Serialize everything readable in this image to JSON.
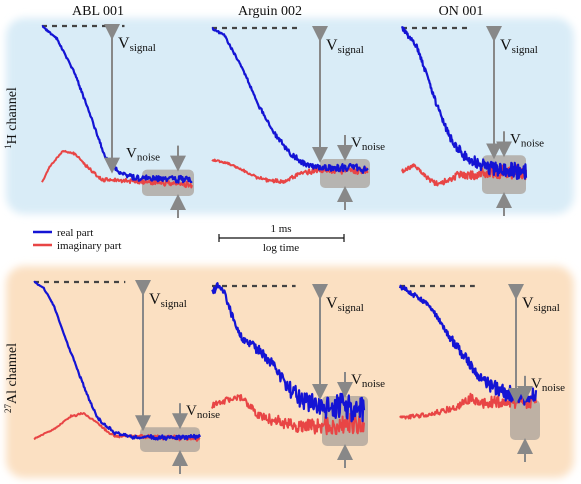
{
  "columns": [
    "ABL 001",
    "Arguin 002",
    "ON 001"
  ],
  "rows": [
    {
      "label_sup": "1",
      "label_main": "H channel",
      "bg": "#d9ecf7"
    },
    {
      "label_sup": "27",
      "label_main": "Al channel",
      "bg": "#fbe0c2"
    }
  ],
  "labels": {
    "v": "V",
    "signal": "signal",
    "noise": "noise"
  },
  "legend": {
    "real": {
      "label": "real part",
      "color": "#1414d4"
    },
    "imag": {
      "label": "imaginary part",
      "color": "#e84545"
    }
  },
  "scalebar": {
    "top": "1 ms",
    "bottom": "log time"
  },
  "colors": {
    "real": "#1414d4",
    "imag": "#e84545",
    "arrow": "#888888",
    "dash": "#444444",
    "noise_box": "#a9a29a"
  },
  "chart_data": {
    "type": "line",
    "x_axis": "log time",
    "panels": [
      {
        "row": 0,
        "col": 0,
        "noise": 0.04,
        "real": [
          [
            0,
            1.0
          ],
          [
            0.1,
            0.92
          ],
          [
            0.22,
            0.7
          ],
          [
            0.32,
            0.45
          ],
          [
            0.42,
            0.18
          ],
          [
            0.52,
            0.08
          ],
          [
            0.62,
            0.05
          ],
          [
            1.0,
            0.04
          ]
        ],
        "imag": [
          [
            0,
            0.02
          ],
          [
            0.05,
            0.12
          ],
          [
            0.14,
            0.22
          ],
          [
            0.22,
            0.2
          ],
          [
            0.3,
            0.12
          ],
          [
            0.4,
            0.04
          ],
          [
            1.0,
            0.01
          ]
        ]
      },
      {
        "row": 0,
        "col": 1,
        "noise": 0.06,
        "real": [
          [
            0,
            1.0
          ],
          [
            0.08,
            0.95
          ],
          [
            0.2,
            0.72
          ],
          [
            0.3,
            0.48
          ],
          [
            0.4,
            0.3
          ],
          [
            0.5,
            0.16
          ],
          [
            0.6,
            0.09
          ],
          [
            0.7,
            0.07
          ],
          [
            1.0,
            0.06
          ]
        ],
        "imag": [
          [
            0,
            0.12
          ],
          [
            0.1,
            0.1
          ],
          [
            0.2,
            0.05
          ],
          [
            0.3,
            0.0
          ],
          [
            0.45,
            -0.03
          ],
          [
            0.55,
            0.02
          ],
          [
            0.65,
            0.05
          ],
          [
            1.0,
            0.05
          ]
        ]
      },
      {
        "row": 0,
        "col": 2,
        "noise": 0.12,
        "real": [
          [
            0,
            1.0
          ],
          [
            0.12,
            0.88
          ],
          [
            0.22,
            0.65
          ],
          [
            0.32,
            0.42
          ],
          [
            0.4,
            0.28
          ],
          [
            0.5,
            0.18
          ],
          [
            0.6,
            0.14
          ],
          [
            0.7,
            0.1
          ],
          [
            1.0,
            0.08
          ]
        ],
        "imag": [
          [
            0,
            0.08
          ],
          [
            0.1,
            0.12
          ],
          [
            0.2,
            0.04
          ],
          [
            0.28,
            0.0
          ],
          [
            0.36,
            0.02
          ],
          [
            0.45,
            0.06
          ],
          [
            0.55,
            0.05
          ],
          [
            0.65,
            0.07
          ],
          [
            1.0,
            0.08
          ]
        ]
      },
      {
        "row": 1,
        "col": 0,
        "noise": 0.03,
        "real": [
          [
            0,
            1.0
          ],
          [
            0.06,
            0.96
          ],
          [
            0.12,
            0.85
          ],
          [
            0.2,
            0.62
          ],
          [
            0.3,
            0.35
          ],
          [
            0.38,
            0.15
          ],
          [
            0.48,
            0.06
          ],
          [
            0.6,
            0.03
          ],
          [
            1.0,
            0.03
          ]
        ],
        "imag": [
          [
            0,
            0.02
          ],
          [
            0.12,
            0.08
          ],
          [
            0.22,
            0.16
          ],
          [
            0.3,
            0.18
          ],
          [
            0.38,
            0.12
          ],
          [
            0.48,
            0.04
          ],
          [
            1.0,
            0.02
          ]
        ]
      },
      {
        "row": 1,
        "col": 1,
        "noise": 0.2,
        "real": [
          [
            0,
            0.96
          ],
          [
            0.04,
            1.0
          ],
          [
            0.08,
            0.96
          ],
          [
            0.14,
            0.78
          ],
          [
            0.2,
            0.65
          ],
          [
            0.3,
            0.58
          ],
          [
            0.42,
            0.45
          ],
          [
            0.5,
            0.32
          ],
          [
            0.58,
            0.25
          ],
          [
            0.7,
            0.2
          ],
          [
            0.8,
            0.2
          ],
          [
            1.0,
            0.18
          ]
        ],
        "imag": [
          [
            0,
            0.2
          ],
          [
            0.1,
            0.24
          ],
          [
            0.2,
            0.26
          ],
          [
            0.3,
            0.14
          ],
          [
            0.42,
            0.1
          ],
          [
            0.55,
            0.06
          ],
          [
            0.7,
            0.06
          ],
          [
            0.85,
            0.08
          ],
          [
            1.0,
            0.1
          ]
        ]
      },
      {
        "row": 1,
        "col": 2,
        "noise": 0.14,
        "real": [
          [
            0,
            1.0
          ],
          [
            0.1,
            0.94
          ],
          [
            0.22,
            0.86
          ],
          [
            0.3,
            0.74
          ],
          [
            0.4,
            0.6
          ],
          [
            0.5,
            0.48
          ],
          [
            0.58,
            0.38
          ],
          [
            0.68,
            0.3
          ],
          [
            0.78,
            0.26
          ],
          [
            1.0,
            0.22
          ]
        ],
        "imag": [
          [
            0,
            0.08
          ],
          [
            0.14,
            0.1
          ],
          [
            0.28,
            0.12
          ],
          [
            0.42,
            0.16
          ],
          [
            0.52,
            0.22
          ],
          [
            0.6,
            0.18
          ],
          [
            0.7,
            0.2
          ],
          [
            0.8,
            0.2
          ],
          [
            1.0,
            0.2
          ]
        ]
      }
    ]
  }
}
